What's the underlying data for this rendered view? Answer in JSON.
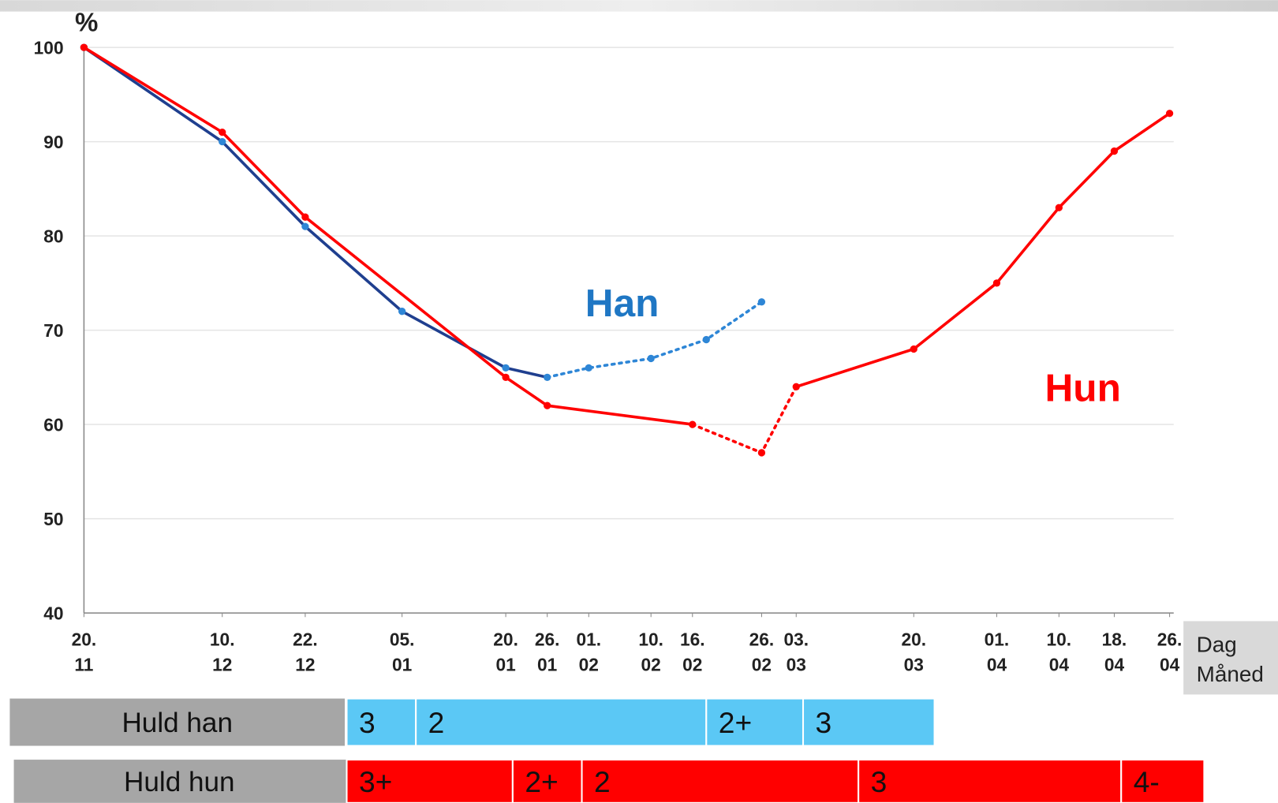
{
  "chart_data": {
    "type": "line",
    "y_label": "%",
    "x_label": [
      "Dag",
      "Måned"
    ],
    "xticks": [
      "20.\n11",
      "10.\n12",
      "22.\n12",
      "05.\n01",
      "20.\n01",
      "26.\n01",
      "01.\n02",
      "10.\n02",
      "16.\n02",
      "26.\n02",
      "03.\n03",
      "20.\n03",
      "01.\n04",
      "10.\n04",
      "18.\n04",
      "26.\n04"
    ],
    "xlim": [
      "20.\n11",
      "26.\n04"
    ],
    "ylim": [
      40,
      100
    ],
    "yticks": [
      40,
      50,
      60,
      70,
      80,
      90,
      100
    ],
    "grid": true,
    "series": [
      {
        "name": "Han",
        "color": "#1f3f8f",
        "marker_color": "#2e86d6",
        "dotted_color": "#2e86d6",
        "x": [
          "20.\n11",
          "10.\n12",
          "22.\n12",
          "05.\n01",
          "20.\n01",
          "26.\n01",
          "01.\n02",
          "10.\n02",
          "18.\n02",
          "26.\n02"
        ],
        "values": [
          100,
          90,
          81,
          72,
          66,
          65,
          66,
          67,
          69,
          73
        ],
        "dotted": [
          [
            5,
            9
          ]
        ],
        "label_color": "#1f77c4"
      },
      {
        "name": "Hun",
        "color": "#ff0000",
        "marker_color": "#ff0000",
        "dotted_color": "#ff0000",
        "x": [
          "20.\n11",
          "10.\n12",
          "22.\n12",
          "20.\n01",
          "26.\n01",
          "16.\n02",
          "26.\n02",
          "03.\n03",
          "20.\n03",
          "01.\n04",
          "10.\n04",
          "18.\n04",
          "26.\n04"
        ],
        "values": [
          100,
          91,
          82,
          65,
          62,
          60,
          57,
          64,
          68,
          75,
          83,
          89,
          93
        ],
        "dotted": [
          [
            5,
            7
          ]
        ],
        "label_color": "#ff0000"
      }
    ],
    "bands": [
      {
        "label": "Huld han",
        "color": "#5bc8f5",
        "segments": [
          {
            "label": "3",
            "start": "28.12",
            "end": "07.01"
          },
          {
            "label": "2",
            "start": "07.01",
            "end": "18.02"
          },
          {
            "label": "2+",
            "start": "18.02",
            "end": "04.03"
          },
          {
            "label": "3",
            "start": "04.03",
            "end": "23.03"
          }
        ]
      },
      {
        "label": "Huld hun",
        "color": "#ff0000",
        "segments": [
          {
            "label": "3+",
            "start": "28.12",
            "end": "21.01"
          },
          {
            "label": "2+",
            "start": "21.01",
            "end": "31.01"
          },
          {
            "label": "2",
            "start": "31.01",
            "end": "12.03"
          },
          {
            "label": "3",
            "start": "12.03",
            "end": "19.04"
          },
          {
            "label": "4-",
            "start": "19.04",
            "end": "01.05"
          }
        ]
      }
    ]
  }
}
